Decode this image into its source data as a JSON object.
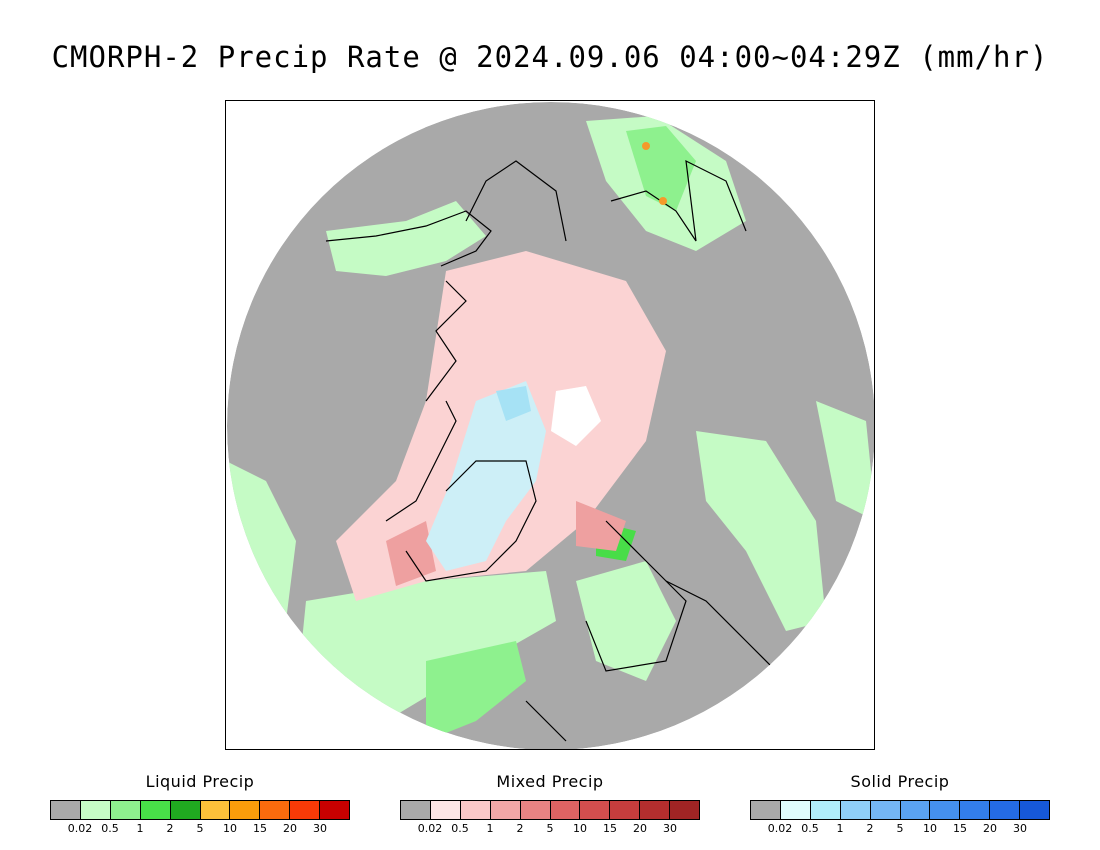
{
  "title": "CMORPH-2 Precip Rate @ 2024.09.06 04:00~04:29Z (mm/hr)",
  "map": {
    "projection": "north polar stereographic",
    "colors": {
      "no_precip": "#a9a9a9",
      "ocean_off_disk": "#ffffff",
      "coastline": "#000000",
      "liquid_light": "#c5fbc5",
      "liquid_moderate": "#8ef18e",
      "liquid_heavy": "#48dd48",
      "mixed_light": "#fbd3d3",
      "mixed_moderate": "#eea0a0",
      "solid_light": "#cdeff7",
      "solid_moderate": "#a6e2f5",
      "pole_gap": "#ffffff",
      "orange_cells": "#f59a2a"
    }
  },
  "legends": [
    {
      "title": "Liquid Precip",
      "colors": [
        "#a9a9a9",
        "#c6fcc5",
        "#8ef08e",
        "#48e048",
        "#20aa20",
        "#fcc03a",
        "#fb9d0b",
        "#fb6b0d",
        "#f83a07",
        "#c80000"
      ],
      "ticks": [
        "0.02",
        "0.5",
        "1",
        "2",
        "5",
        "10",
        "15",
        "20",
        "30"
      ]
    },
    {
      "title": "Mixed Precip",
      "colors": [
        "#a9a9a9",
        "#fde6e6",
        "#fbc9c9",
        "#f2a6a6",
        "#e98383",
        "#df6363",
        "#d34e4e",
        "#c53d3d",
        "#b32e2e",
        "#a02424"
      ],
      "ticks": [
        "0.02",
        "0.5",
        "1",
        "2",
        "5",
        "10",
        "15",
        "20",
        "30"
      ]
    },
    {
      "title": "Solid Precip",
      "colors": [
        "#a9a9a9",
        "#e0fdfd",
        "#b1eefb",
        "#8fcff8",
        "#74b6f5",
        "#5aa2f2",
        "#4590ef",
        "#337eeb",
        "#246be4",
        "#1658d9"
      ],
      "ticks": [
        "0.02",
        "0.5",
        "1",
        "2",
        "5",
        "10",
        "15",
        "20",
        "30"
      ]
    }
  ]
}
